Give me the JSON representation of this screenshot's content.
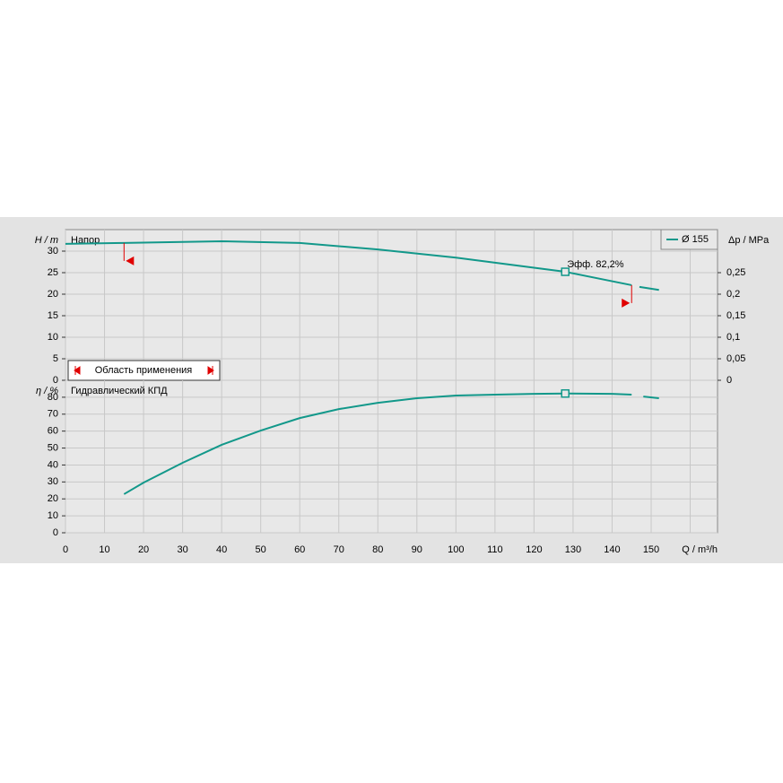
{
  "chart_data": [
    {
      "type": "line",
      "title": "Напор",
      "ylabel": "H / m",
      "y2label": "Δp / MPa",
      "xlim": [
        0,
        167
      ],
      "xticks": [
        0,
        10,
        20,
        30,
        40,
        50,
        60,
        70,
        80,
        90,
        100,
        110,
        120,
        130,
        140,
        150,
        160
      ],
      "ylim": [
        0,
        35
      ],
      "yticks": [
        0,
        5,
        10,
        15,
        20,
        25,
        30
      ],
      "y2lim": [
        0,
        0.35
      ],
      "y2ticks": [
        0,
        {
          "value": 0.05,
          "label": "0,05"
        },
        {
          "value": 0.1,
          "label": "0,1"
        },
        {
          "value": 0.15,
          "label": "0,15"
        },
        {
          "value": 0.2,
          "label": "0,2"
        },
        {
          "value": 0.25,
          "label": "0,25"
        }
      ],
      "grid": true,
      "legend": "upper right",
      "series": [
        {
          "name": "Ø 155",
          "color": "#12988a",
          "x": [
            0,
            15,
            40,
            60,
            80,
            100,
            128,
            145,
            null,
            147,
            152
          ],
          "values": [
            31.7,
            31.9,
            32.3,
            31.9,
            30.4,
            28.5,
            25.2,
            22.1,
            null,
            21.7,
            21.0
          ]
        }
      ],
      "operating_point": {
        "x": 128,
        "y": 25.2
      },
      "annotation": "Эфф.  82,2%",
      "range": [
        15,
        145
      ],
      "range_label": "Область применения"
    },
    {
      "type": "line",
      "title": "Гидравлический КПД",
      "ylabel": "η / %",
      "xlabel": "Q / m³/h",
      "xlim": [
        0,
        167
      ],
      "xticks": [
        0,
        10,
        20,
        30,
        40,
        50,
        60,
        70,
        80,
        90,
        100,
        110,
        120,
        130,
        140,
        150,
        160
      ],
      "xticklabels": [
        0,
        10,
        20,
        30,
        40,
        50,
        60,
        70,
        80,
        90,
        100,
        110,
        120,
        130,
        140,
        150
      ],
      "ylim": [
        0,
        90
      ],
      "yticks": [
        0,
        10,
        20,
        30,
        40,
        50,
        60,
        70,
        80
      ],
      "grid": true,
      "series": [
        {
          "color": "#12988a",
          "x": [
            15,
            20,
            30,
            40,
            50,
            60,
            70,
            80,
            90,
            100,
            110,
            120,
            128,
            140,
            145,
            null,
            148,
            152
          ],
          "values": [
            22.8,
            29.6,
            41.3,
            51.9,
            60.3,
            67.7,
            73,
            76.7,
            79.4,
            81,
            81.5,
            82,
            82.2,
            82,
            81.5,
            null,
            80.4,
            79.4
          ]
        }
      ],
      "operating_point": {
        "x": 128,
        "y": 82.2
      }
    }
  ]
}
